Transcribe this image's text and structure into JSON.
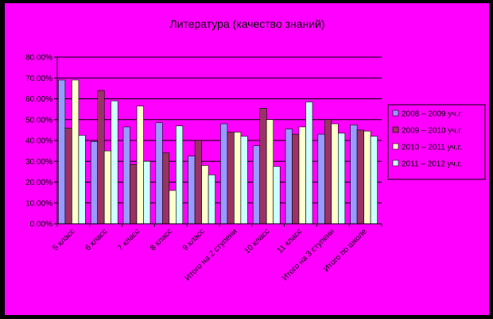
{
  "chart_data": {
    "type": "bar",
    "title": "Литература (качество знаний)",
    "xlabel": "",
    "ylabel": "",
    "ylim": [
      0,
      80
    ],
    "yticks": [
      "0.00%",
      "10.00%",
      "20.00%",
      "30.00%",
      "40.00%",
      "50.00%",
      "60.00%",
      "70.00%",
      "80.00%"
    ],
    "grid": true,
    "legend_position": "right",
    "categories": [
      "5 класс",
      "6 класс",
      "7 класс",
      "8 класс",
      "9 класс",
      "Итого на 2 ступени",
      "10 класс",
      "11 класс",
      "Итого на 3 ступени",
      "Итого по школе"
    ],
    "series": [
      {
        "name": "2008 – 2009 уч.г.",
        "color": "#9999ff",
        "values": [
          69,
          39.5,
          46.5,
          48.5,
          32.5,
          48,
          37.5,
          45.5,
          43,
          47.5
        ]
      },
      {
        "name": "2009 – 2010 уч.г.",
        "color": "#993366",
        "values": [
          46,
          64,
          28.5,
          34,
          40,
          44,
          55.5,
          43,
          50,
          45
        ]
      },
      {
        "name": "2010 – 2011 уч.г.",
        "color": "#ffffcc",
        "values": [
          69,
          35,
          56.5,
          16,
          28,
          44,
          50,
          46.5,
          48,
          44.5
        ]
      },
      {
        "name": "2011 – 2012 уч.г.",
        "color": "#ccffff",
        "values": [
          42.5,
          59,
          30,
          47,
          23.5,
          42,
          27.5,
          58.5,
          43.5,
          42
        ]
      }
    ]
  }
}
